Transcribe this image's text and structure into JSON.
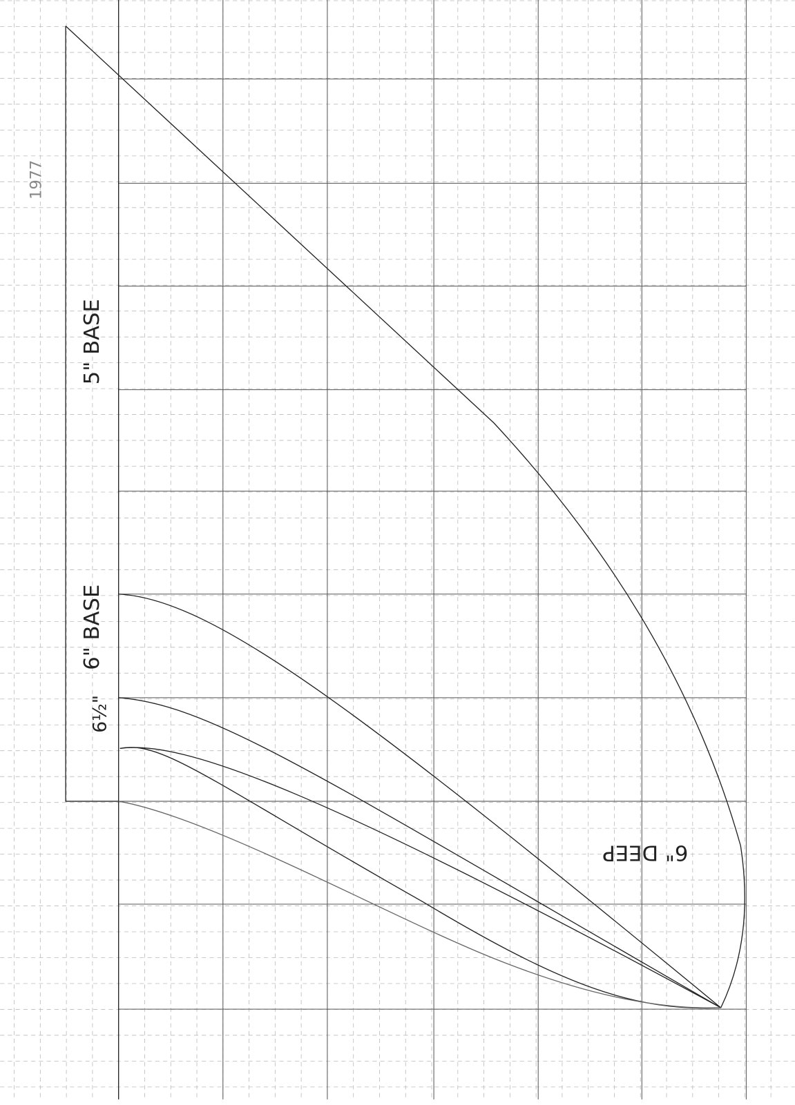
{
  "annotations": {
    "year": "1977",
    "base_5": "5\" BASE",
    "base_6": "6\" BASE",
    "base_6_half": "6½\"",
    "depth": "6\" DEEP"
  }
}
